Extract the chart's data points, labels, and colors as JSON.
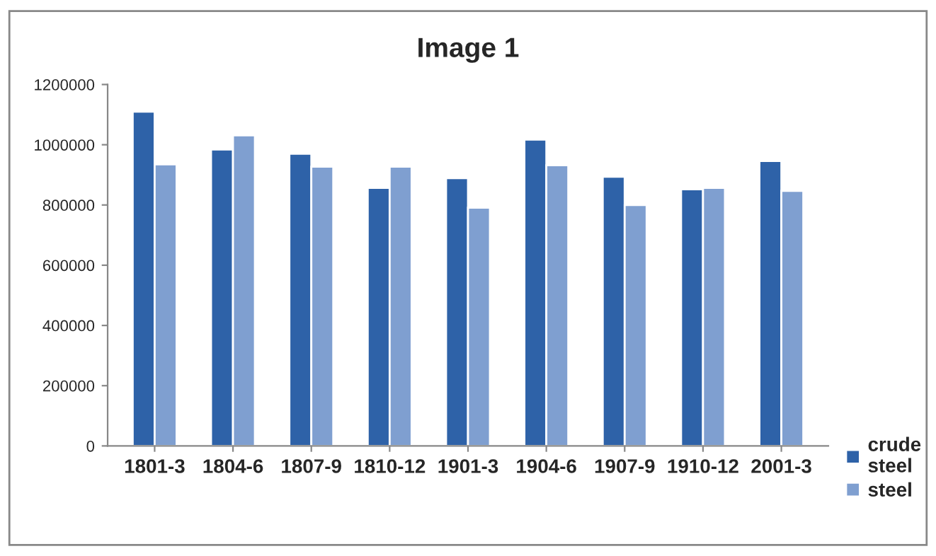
{
  "chart_data": {
    "type": "bar",
    "title": "Image 1",
    "categories": [
      "1801-3",
      "1804-6",
      "1807-9",
      "1810-12",
      "1901-3",
      "1904-6",
      "1907-9",
      "1910-12",
      "2001-3"
    ],
    "series": [
      {
        "name": "crude\nsteel",
        "color": "#2e62a8",
        "values": [
          1110000,
          984000,
          970000,
          857000,
          889000,
          1017000,
          894000,
          852000,
          946000
        ]
      },
      {
        "name": "steel",
        "color": "#7f9fd0",
        "values": [
          935000,
          1031000,
          927000,
          927000,
          791000,
          932000,
          800000,
          857000,
          847000
        ]
      }
    ],
    "ylim": [
      0,
      1200000
    ],
    "yticks": [
      0,
      200000,
      400000,
      600000,
      800000,
      1000000,
      1200000
    ],
    "grid": false,
    "legend": "bottom right"
  }
}
